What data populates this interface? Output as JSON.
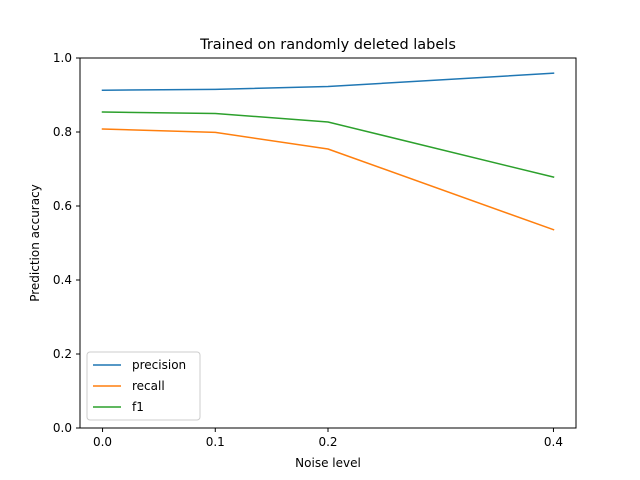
{
  "chart_data": {
    "type": "line",
    "title": "Trained on randomly deleted labels",
    "xlabel": "Noise level",
    "ylabel": "Prediction accuracy",
    "x": [
      0.0,
      0.1,
      0.2,
      0.4
    ],
    "x_tick_labels": [
      "0.0",
      "0.1",
      "0.2",
      "0.4"
    ],
    "xlim": [
      -0.02,
      0.42
    ],
    "ylim": [
      0.0,
      1.0
    ],
    "y_ticks": [
      0.0,
      0.2,
      0.4,
      0.6,
      0.8,
      1.0
    ],
    "y_tick_labels": [
      "0.0",
      "0.2",
      "0.4",
      "0.6",
      "0.8",
      "1.0"
    ],
    "grid": false,
    "legend_position": "lower-left",
    "series": [
      {
        "name": "precision",
        "color": "#1f77b4",
        "values": [
          0.913,
          0.915,
          0.923,
          0.959
        ]
      },
      {
        "name": "recall",
        "color": "#ff7f0e",
        "values": [
          0.808,
          0.799,
          0.754,
          0.536
        ]
      },
      {
        "name": "f1",
        "color": "#2ca02c",
        "values": [
          0.854,
          0.85,
          0.827,
          0.678
        ]
      }
    ]
  }
}
